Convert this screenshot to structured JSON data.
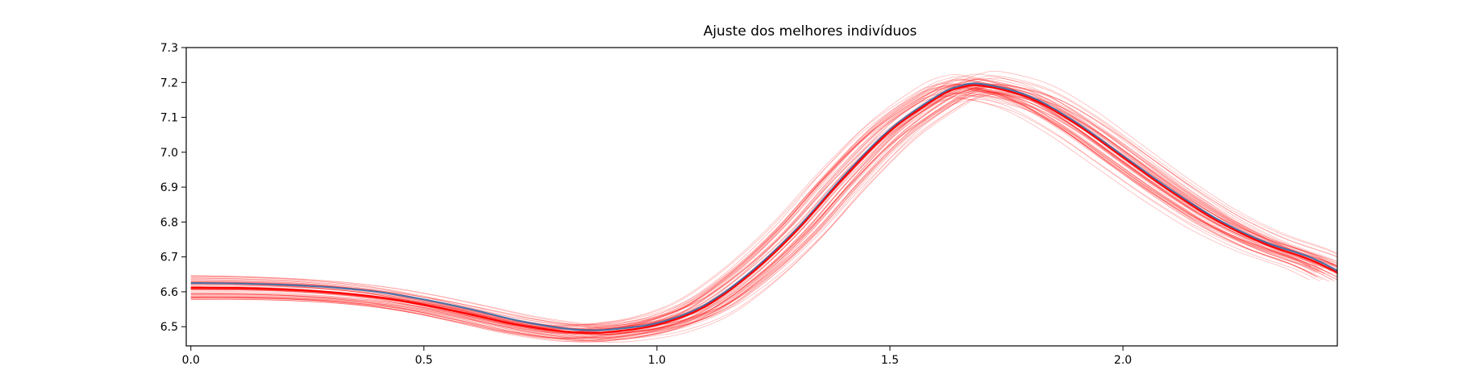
{
  "chart_data": {
    "type": "line",
    "title": "Ajuste dos melhores indivíduos",
    "xlabel": "",
    "ylabel": "",
    "xlim": [
      -0.01,
      2.46
    ],
    "ylim": [
      6.445,
      7.3
    ],
    "x_ticks": [
      "0.0",
      "0.5",
      "1.0",
      "1.5",
      "2.0"
    ],
    "y_ticks": [
      "6.5",
      "6.6",
      "6.7",
      "6.8",
      "6.9",
      "7.0",
      "7.1",
      "7.2",
      "7.3"
    ],
    "x": [
      0.0,
      0.1,
      0.2,
      0.3,
      0.4,
      0.5,
      0.6,
      0.7,
      0.8,
      0.85,
      0.9,
      1.0,
      1.1,
      1.2,
      1.3,
      1.4,
      1.5,
      1.6,
      1.65,
      1.7,
      1.8,
      1.9,
      2.0,
      2.1,
      2.2,
      2.3,
      2.4,
      2.46
    ],
    "series": [
      {
        "color": "#4a6fa5",
        "linewidth": 2.2,
        "values": [
          6.625,
          6.624,
          6.62,
          6.613,
          6.6,
          6.578,
          6.55,
          6.518,
          6.495,
          6.49,
          6.492,
          6.51,
          6.56,
          6.655,
          6.78,
          6.93,
          7.065,
          7.16,
          7.19,
          7.195,
          7.16,
          7.085,
          6.99,
          6.895,
          6.81,
          6.745,
          6.7,
          6.66
        ]
      },
      {
        "color": "#ff0000",
        "linewidth": 2.2,
        "values": [
          6.612,
          6.611,
          6.607,
          6.599,
          6.585,
          6.563,
          6.535,
          6.506,
          6.486,
          6.482,
          6.485,
          6.505,
          6.555,
          6.65,
          6.775,
          6.925,
          7.06,
          7.155,
          7.185,
          7.19,
          7.155,
          7.08,
          6.985,
          6.89,
          6.805,
          6.74,
          6.693,
          6.655
        ]
      }
    ],
    "ensemble": {
      "color": "#ff0000",
      "count": 60,
      "opacity": 0.28
    }
  }
}
